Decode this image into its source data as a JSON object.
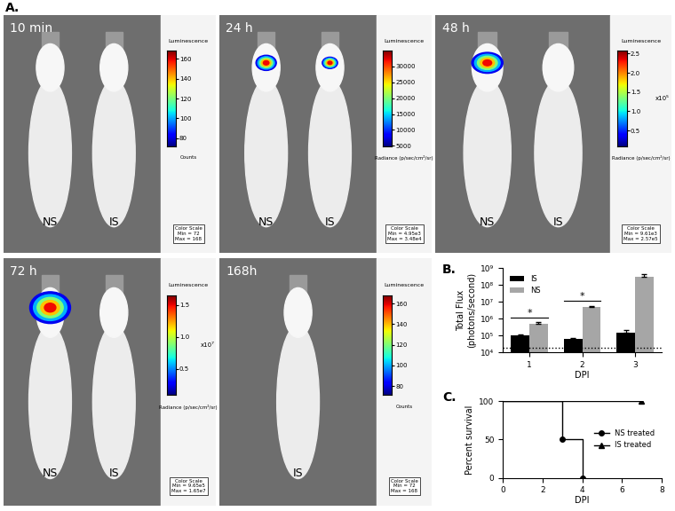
{
  "panel_a": {
    "label": "A.",
    "images": [
      {
        "time": "10 min",
        "mice": [
          "NS",
          "IS"
        ],
        "colorbar": {
          "title": "Luminescence",
          "unit": "Counts",
          "range": [
            72,
            168
          ],
          "ticks": [
            80,
            100,
            120,
            140,
            160
          ],
          "scale_text": [
            "Color Scale",
            "Min = 72",
            "Max = 168"
          ]
        }
      },
      {
        "time": "24 h",
        "mice": [
          "NS",
          "IS"
        ],
        "colorbar": {
          "title": "Luminescence",
          "unit": "Radiance (p/sec/cm²/sr)",
          "range": [
            4950,
            34800
          ],
          "ticks": [
            5000,
            10000,
            15000,
            20000,
            25000,
            30000
          ],
          "scale_text": [
            "Color Scale",
            "Min = 4.95e3",
            "Max = 3.48e4"
          ]
        }
      },
      {
        "time": "48 h",
        "mice": [
          "NS",
          "IS"
        ],
        "colorbar": {
          "title": "Luminescence",
          "unit": "Radiance (p/sec/cm²/sr)",
          "range": [
            0.0961,
            2.57
          ],
          "ticks": [
            0.5,
            1.0,
            1.5,
            2.0,
            2.5
          ],
          "multiplier": "x10⁵",
          "scale_text": [
            "Color Scale",
            "Min = 9.61e3",
            "Max = 2.57e5"
          ]
        }
      },
      {
        "time": "72 h",
        "mice": [
          "NS",
          "IS"
        ],
        "colorbar": {
          "title": "Luminescence",
          "unit": "Radiance (p/sec/cm²/sr)",
          "range": [
            0.0965,
            1.65
          ],
          "ticks": [
            0.5,
            1.0,
            1.5
          ],
          "multiplier": "x10⁷",
          "scale_text": [
            "Color Scale",
            "Min = 9.65e5",
            "Max = 1.65e7"
          ]
        }
      },
      {
        "time": "168h",
        "mice": [
          "IS"
        ],
        "colorbar": {
          "title": "Luminescence",
          "unit": "Counts",
          "range": [
            72,
            168
          ],
          "ticks": [
            80,
            100,
            120,
            140,
            160
          ],
          "scale_text": [
            "Color Scale",
            "Min = 72",
            "Max = 168"
          ]
        }
      }
    ]
  },
  "chart_data": [
    {
      "type": "bar",
      "title": "B.",
      "xlabel": "DPI",
      "ylabel": "Total Flux\n(photons/second)",
      "x": [
        1,
        2,
        3
      ],
      "xlim": [
        0.5,
        3.5
      ],
      "xticks": [
        1,
        2,
        3
      ],
      "log": "y",
      "ylim": [
        10000,
        1000000000
      ],
      "yticks": [
        {
          "value": 10000,
          "label": "10⁴"
        },
        {
          "value": 100000,
          "label": "10⁵"
        },
        {
          "value": 1000000,
          "label": "10⁶"
        },
        {
          "value": 10000000,
          "label": "10⁷"
        },
        {
          "value": 100000000,
          "label": "10⁸"
        },
        {
          "value": 1000000000,
          "label": "10⁹"
        }
      ],
      "series": [
        {
          "name": "IS",
          "color": "#000000",
          "values": [
            100000,
            65000,
            150000
          ],
          "error": [
            15000,
            5000,
            80000
          ]
        },
        {
          "name": "NS",
          "color": "#a6a6a6",
          "values": [
            500000,
            5000000,
            300000000
          ],
          "error": [
            150000,
            800000,
            150000000
          ]
        }
      ],
      "threshold": 20000,
      "annotations": [
        {
          "text": "*",
          "x": 1,
          "y": 1200000
        },
        {
          "text": "*",
          "x": 2,
          "y": 12000000
        }
      ],
      "legend": "upper left"
    },
    {
      "type": "line",
      "title": "C.",
      "xlabel": "DPI",
      "ylabel": "Percent survival",
      "xlim": [
        0,
        8
      ],
      "xticks": [
        0,
        2,
        4,
        6,
        8
      ],
      "ylim": [
        0,
        100
      ],
      "yticks": [
        0,
        50,
        100
      ],
      "line_style": "steps",
      "series": [
        {
          "name": "NS treated",
          "color": "#000000",
          "marker": "o",
          "x": [
            0,
            3,
            4
          ],
          "values": [
            100,
            50,
            0
          ]
        },
        {
          "name": "IS treated",
          "color": "#000000",
          "marker": "^",
          "x": [
            0,
            7
          ],
          "values": [
            100,
            100
          ]
        }
      ],
      "legend": "center right"
    }
  ]
}
